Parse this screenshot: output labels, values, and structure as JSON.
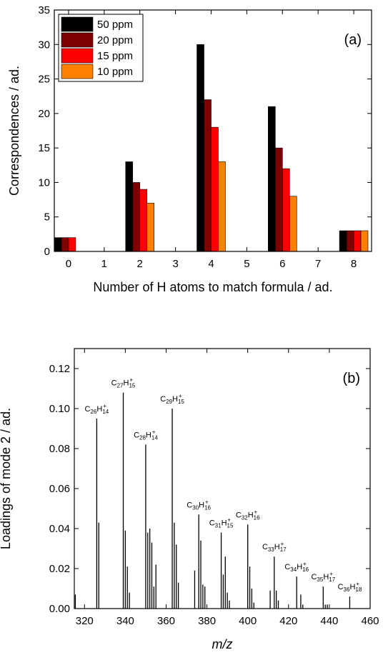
{
  "chart_data": [
    {
      "type": "bar",
      "xlabel": "Number of H atoms to match formula / ad.",
      "ylabel": "Correspondences / ad.",
      "annotation": "(a)",
      "x": [
        0,
        1,
        2,
        3,
        4,
        5,
        6,
        7,
        8
      ],
      "series": [
        {
          "name": "50 ppm",
          "color": "#000000",
          "values": [
            2,
            0,
            13,
            0,
            30,
            0,
            21,
            0,
            3
          ]
        },
        {
          "name": "20 ppm",
          "color": "#800000",
          "values": [
            2,
            0,
            10,
            0,
            22,
            0,
            15,
            0,
            3
          ]
        },
        {
          "name": "15 ppm",
          "color": "#ff0000",
          "values": [
            2,
            0,
            9,
            0,
            18,
            0,
            12,
            0,
            3
          ]
        },
        {
          "name": "10 ppm",
          "color": "#ff8000",
          "values": [
            0,
            0,
            7,
            0,
            13,
            0,
            8,
            0,
            3
          ]
        }
      ],
      "xlim": [
        -0.4,
        8.5
      ],
      "xticks": [
        0,
        1,
        2,
        3,
        4,
        5,
        6,
        7,
        8
      ],
      "ylim": [
        0,
        35
      ],
      "yticks": [
        0,
        5,
        10,
        15,
        20,
        25,
        30,
        35
      ],
      "legend": "top-left"
    },
    {
      "type": "stem",
      "xlabel": "m/z",
      "ylabel": "Loadings of mode 2 / ad.",
      "annotation": "(b)",
      "color": "#000000",
      "x": [
        315.5,
        326,
        327,
        339,
        340,
        341,
        342,
        350,
        351,
        352,
        353,
        354,
        355,
        363,
        364,
        365,
        366,
        374,
        376,
        377,
        378,
        379,
        387,
        388,
        389,
        390,
        391,
        400,
        401,
        402,
        403,
        411,
        413,
        414,
        415,
        424,
        426,
        427,
        437,
        438,
        439,
        450
      ],
      "values": [
        0.007,
        0.095,
        0.043,
        0.108,
        0.039,
        0.021,
        0.008,
        0.082,
        0.038,
        0.04,
        0.033,
        0.011,
        0.022,
        0.1,
        0.043,
        0.032,
        0.013,
        0.019,
        0.047,
        0.034,
        0.012,
        0.011,
        0.038,
        0.017,
        0.026,
        0.008,
        0.004,
        0.042,
        0.021,
        0.01,
        0.003,
        0.009,
        0.026,
        0.009,
        0.004,
        0.016,
        0.007,
        0.002,
        0.011,
        0.002,
        0.002,
        0.006
      ],
      "peak_labels": [
        {
          "x": 326,
          "parts": [
            "C",
            "26",
            "H",
            "14",
            "+"
          ]
        },
        {
          "x": 339,
          "parts": [
            "C",
            "27",
            "H",
            "15",
            "+"
          ]
        },
        {
          "x": 350,
          "parts": [
            "C",
            "28",
            "H",
            "14",
            "+"
          ]
        },
        {
          "x": 363,
          "parts": [
            "C",
            "29",
            "H",
            "15",
            "+"
          ]
        },
        {
          "x": 376,
          "parts": [
            "C",
            "30",
            "H",
            "16",
            "+"
          ]
        },
        {
          "x": 387,
          "parts": [
            "C",
            "31",
            "H",
            "15",
            "+"
          ]
        },
        {
          "x": 400,
          "parts": [
            "C",
            "32",
            "H",
            "16",
            "+"
          ]
        },
        {
          "x": 413,
          "parts": [
            "C",
            "33",
            "H",
            "17",
            "+"
          ]
        },
        {
          "x": 424,
          "parts": [
            "C",
            "34",
            "H",
            "16",
            "+"
          ]
        },
        {
          "x": 437,
          "parts": [
            "C",
            "35",
            "H",
            "17",
            "+"
          ]
        },
        {
          "x": 450,
          "parts": [
            "C",
            "36",
            "H",
            "18",
            "+"
          ]
        }
      ],
      "xlim": [
        315,
        460
      ],
      "xticks": [
        320,
        340,
        360,
        380,
        400,
        420,
        440,
        460
      ],
      "ylim": [
        0,
        0.13
      ],
      "yticks": [
        {
          "value": 0,
          "label": "0.00"
        },
        0.02,
        0.04,
        0.06,
        0.08,
        {
          "value": 0.1,
          "label": "0.10"
        },
        0.12
      ]
    }
  ]
}
